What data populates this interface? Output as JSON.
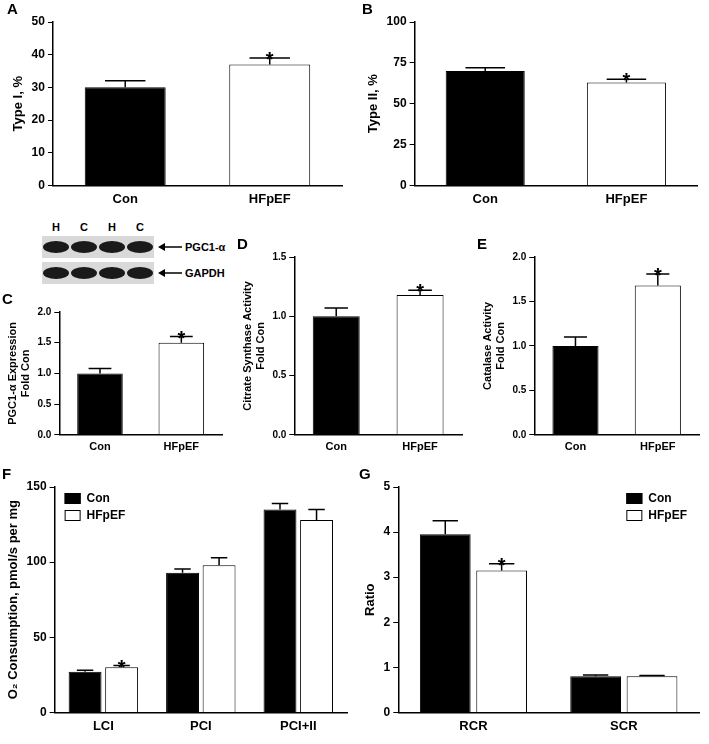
{
  "chart_data": [
    {
      "type": "bar",
      "title": "A",
      "ylabel": "Type I, %",
      "categories": [
        "Con",
        "HFpEF"
      ],
      "values": [
        30,
        37
      ],
      "errors": [
        2,
        2
      ],
      "colors": [
        "#000000",
        "#ffffff"
      ],
      "ylim": [
        0,
        50
      ],
      "yticks": [
        0,
        10,
        20,
        30,
        40,
        50
      ],
      "grid": false,
      "annotations": [
        {
          "text": "*",
          "category": "HFpEF"
        }
      ]
    },
    {
      "type": "bar",
      "title": "B",
      "ylabel": "Type II, %",
      "categories": [
        "Con",
        "HFpEF"
      ],
      "values": [
        70,
        63
      ],
      "errors": [
        2,
        2
      ],
      "colors": [
        "#000000",
        "#ffffff"
      ],
      "ylim": [
        0,
        100
      ],
      "yticks": [
        0,
        25,
        50,
        75,
        100
      ],
      "grid": false,
      "annotations": [
        {
          "text": "*",
          "category": "HFpEF"
        }
      ]
    },
    {
      "type": "bar",
      "title": "C",
      "ylabel": [
        "PGC1-α Expression",
        "Fold Con"
      ],
      "categories": [
        "Con",
        "HFpEF"
      ],
      "values": [
        1.0,
        1.5
      ],
      "errors": [
        0.08,
        0.1
      ],
      "colors": [
        "#000000",
        "#ffffff"
      ],
      "ylim": [
        0,
        2
      ],
      "yticks": [
        {
          "value": 0,
          "label": "0.0"
        },
        0.5,
        {
          "value": 1,
          "label": "1.0"
        },
        1.5,
        {
          "value": 2,
          "label": "2.0"
        }
      ],
      "grid": false,
      "annotations": [
        {
          "text": "*",
          "category": "HFpEF"
        }
      ],
      "blot": {
        "lanes": [
          "H",
          "C",
          "H",
          "C"
        ],
        "bands": [
          "PGC1-α",
          "GAPDH"
        ]
      }
    },
    {
      "type": "bar",
      "title": "D",
      "ylabel": [
        "Citrate Synthase Activity",
        "Fold Con"
      ],
      "categories": [
        "Con",
        "HFpEF"
      ],
      "values": [
        1.0,
        1.18
      ],
      "errors": [
        0.07,
        0.04
      ],
      "colors": [
        "#000000",
        "#ffffff"
      ],
      "ylim": [
        0,
        1.5
      ],
      "yticks": [
        {
          "value": 0,
          "label": "0.0"
        },
        0.5,
        {
          "value": 1,
          "label": "1.0"
        },
        1.5
      ],
      "grid": false,
      "annotations": [
        {
          "text": "*",
          "category": "HFpEF"
        }
      ]
    },
    {
      "type": "bar",
      "title": "E",
      "ylabel": [
        "Catalase Activity",
        "Fold Con"
      ],
      "categories": [
        "Con",
        "HFpEF"
      ],
      "values": [
        1.0,
        1.68
      ],
      "errors": [
        0.1,
        0.13
      ],
      "colors": [
        "#000000",
        "#ffffff"
      ],
      "ylim": [
        0,
        2
      ],
      "yticks": [
        {
          "value": 0,
          "label": "0.0"
        },
        0.5,
        {
          "value": 1,
          "label": "1.0"
        },
        1.5,
        {
          "value": 2,
          "label": "2.0"
        }
      ],
      "grid": false,
      "annotations": [
        {
          "text": "*",
          "category": "HFpEF"
        }
      ]
    },
    {
      "type": "bar",
      "title": "F",
      "ylabel": "O₂ Consumption, pmol/s per mg",
      "categories": [
        "LCI",
        "PCI",
        "PCI+II"
      ],
      "series": [
        {
          "name": "Con",
          "color": "#000000",
          "values": [
            27,
            93,
            135
          ],
          "errors": [
            1,
            2.5,
            4
          ]
        },
        {
          "name": "HFpEF",
          "color": "#ffffff",
          "values": [
            30,
            98,
            128
          ],
          "errors": [
            1.2,
            5,
            7
          ]
        }
      ],
      "ylim": [
        0,
        150
      ],
      "yticks": [
        0,
        50,
        100,
        150
      ],
      "grid": false,
      "legend": "upper left",
      "annotations": [
        {
          "text": "*",
          "category": "LCI",
          "series": "HFpEF"
        }
      ]
    },
    {
      "type": "bar",
      "title": "G",
      "ylabel": "Ratio",
      "categories": [
        "RCR",
        "SCR"
      ],
      "series": [
        {
          "name": "Con",
          "color": "#000000",
          "values": [
            3.95,
            0.8
          ],
          "errors": [
            0.3,
            0.03
          ]
        },
        {
          "name": "HFpEF",
          "color": "#ffffff",
          "values": [
            3.15,
            0.8
          ],
          "errors": [
            0.15,
            0.02
          ]
        }
      ],
      "ylim": [
        0,
        5
      ],
      "yticks": [
        0,
        1,
        2,
        3,
        4,
        5
      ],
      "grid": false,
      "legend": "upper right",
      "annotations": [
        {
          "text": "*",
          "category": "RCR",
          "series": "HFpEF"
        }
      ]
    }
  ]
}
